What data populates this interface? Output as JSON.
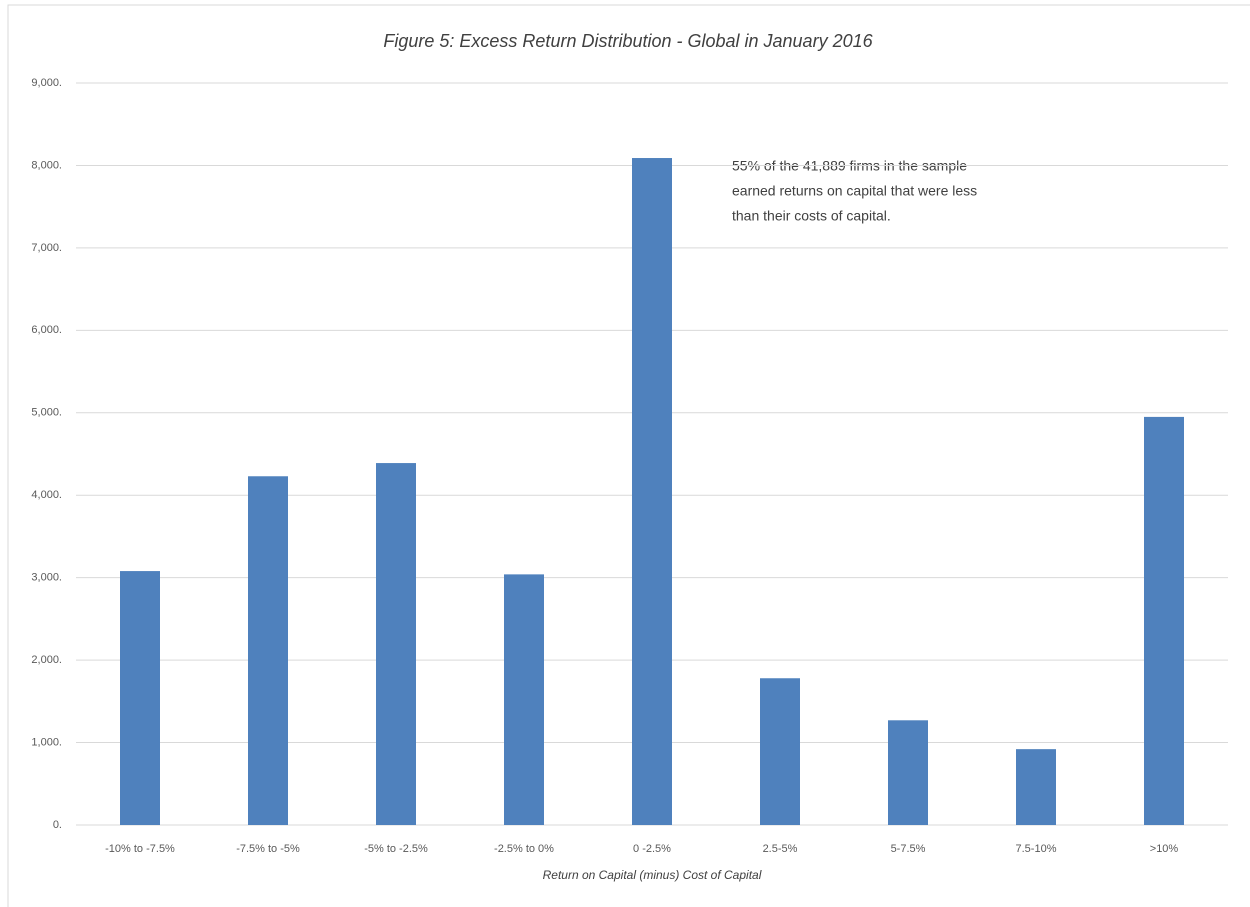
{
  "chart_data": {
    "type": "bar",
    "title": "Figure 5: Excess Return Distribution - Global in January 2016",
    "x_label": "Return  on Capital  (minus)  Cost of Capital",
    "annotation": [
      "55% of the 41,889 firms in the sample",
      "earned returns on capital that were less",
      "than their costs of capital."
    ],
    "categories": [
      "-10% to -7.5%",
      "-7.5% to -5%",
      "-5% to -2.5%",
      "-2.5% to 0%",
      "0 -2.5%",
      "2.5-5%",
      "5-7.5%",
      "7.5-10%",
      ">10%"
    ],
    "values": [
      3080,
      4230,
      4390,
      3040,
      8090,
      1780,
      1270,
      920,
      4950
    ],
    "color": "#4f81bd",
    "ylim": [
      0,
      9000
    ],
    "yticks": [
      {
        "value": 0,
        "label": "0."
      },
      {
        "value": 1000,
        "label": "1,000."
      },
      {
        "value": 2000,
        "label": "2,000."
      },
      {
        "value": 3000,
        "label": "3,000."
      },
      {
        "value": 4000,
        "label": "4,000."
      },
      {
        "value": 5000,
        "label": "5,000."
      },
      {
        "value": 6000,
        "label": "6,000."
      },
      {
        "value": 7000,
        "label": "7,000."
      },
      {
        "value": 8000,
        "label": "8,000."
      },
      {
        "value": 9000,
        "label": "9,000."
      }
    ],
    "grid": true
  }
}
